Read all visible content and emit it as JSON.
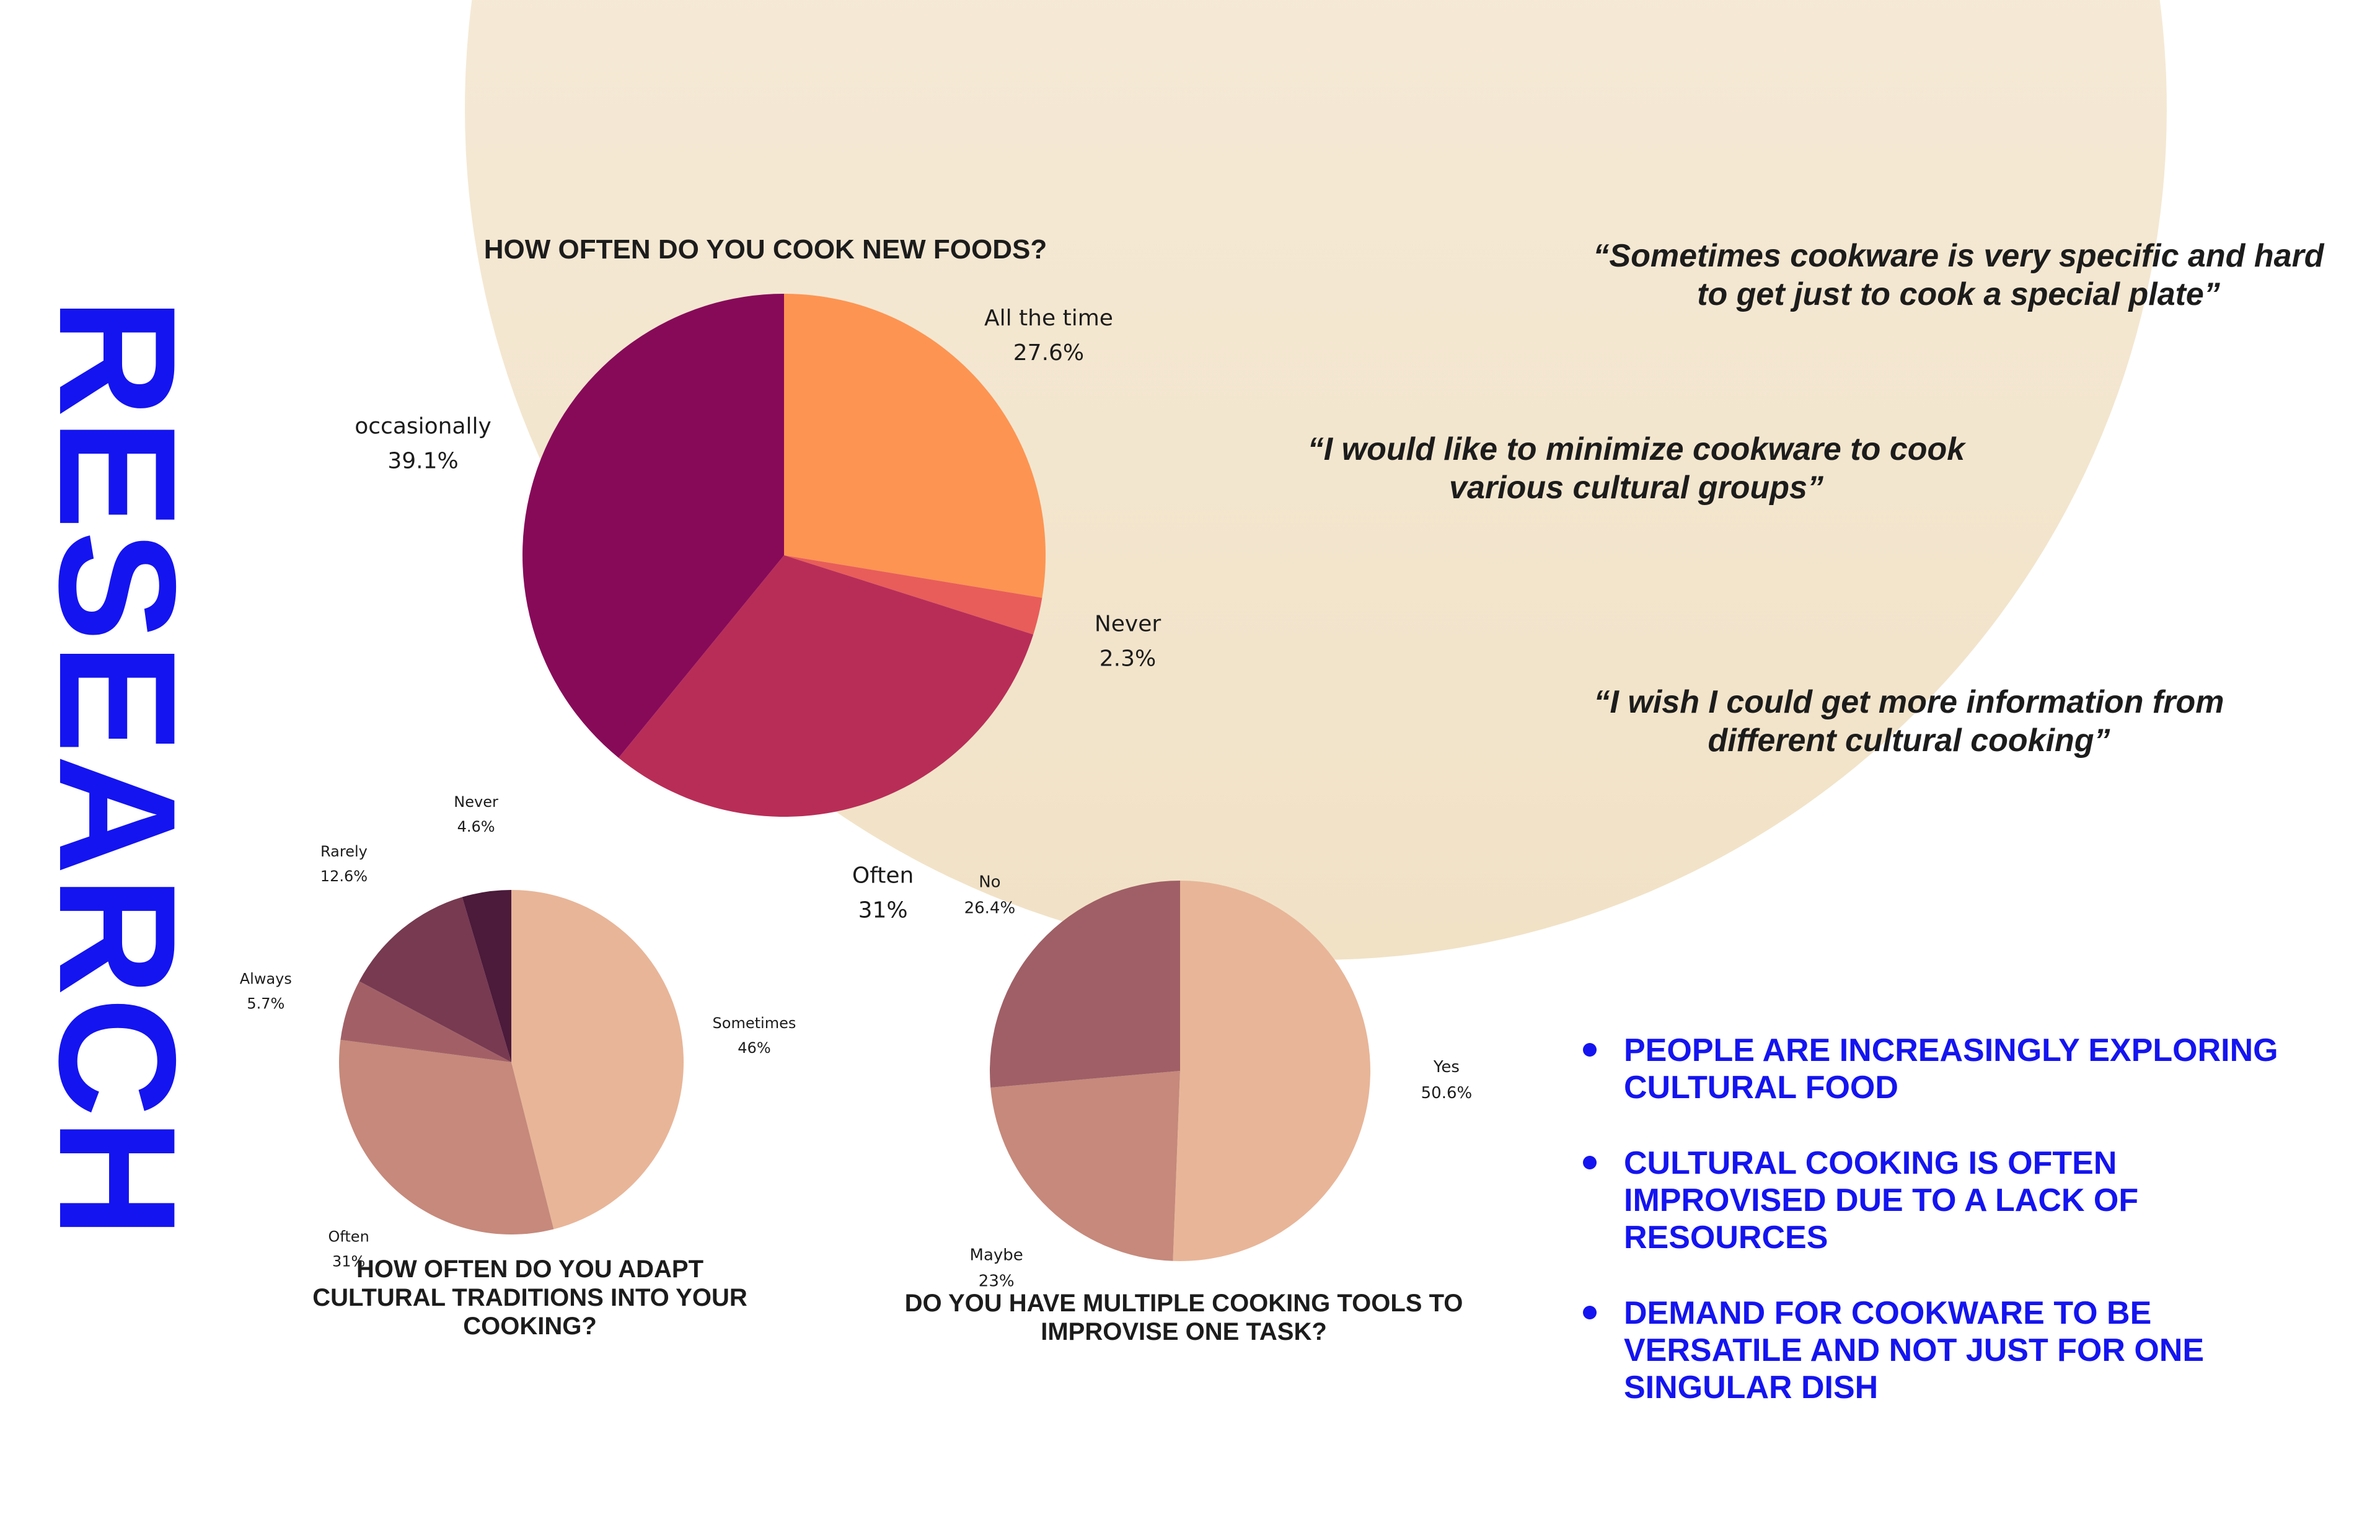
{
  "side_title": "RESEARCH",
  "quotes": [
    "“Sometimes cookware is very specific and hard to get just to cook a special plate”",
    "“I would like to minimize cookware to cook various cultural groups”",
    "“I wish I could get more information from different cultural cooking”"
  ],
  "findings": [
    "People are increasingly exploring cultural food",
    "Cultural cooking is often improvised due to a lack of resources",
    "Demand for cookware to be versatile and not just for one singular dish"
  ],
  "chart_data": [
    {
      "type": "pie",
      "title": "How often do you cook new foods?",
      "slices": [
        {
          "label": "All the time",
          "value": 27.6,
          "display": "27.6%",
          "color": "#fd9452"
        },
        {
          "label": "Never",
          "value": 2.3,
          "display": "2.3%",
          "color": "#e85d5a"
        },
        {
          "label": "Often",
          "value": 31,
          "display": "31%",
          "color": "#b82d58"
        },
        {
          "label": "occasionally",
          "value": 39.1,
          "display": "39.1%",
          "color": "#870a59"
        }
      ]
    },
    {
      "type": "pie",
      "title": "How often do you adapt cultural traditions into your cooking?",
      "slices": [
        {
          "label": "Sometimes",
          "value": 46,
          "display": "46%",
          "color": "#e8b598"
        },
        {
          "label": "Often",
          "value": 31,
          "display": "31%",
          "color": "#c6897b"
        },
        {
          "label": "Always",
          "value": 5.7,
          "display": "5.7%",
          "color": "#a26066"
        },
        {
          "label": "Rarely",
          "value": 12.6,
          "display": "12.6%",
          "color": "#773a51"
        },
        {
          "label": "Never",
          "value": 4.6,
          "display": "4.6%",
          "color": "#4c1a3a"
        }
      ]
    },
    {
      "type": "pie",
      "title": "Do you have multiple cooking tools to improvise one task?",
      "slices": [
        {
          "label": "Yes",
          "value": 50.6,
          "display": "50.6%",
          "color": "#e8b598"
        },
        {
          "label": "Maybe",
          "value": 23,
          "display": "23%",
          "color": "#c6897b"
        },
        {
          "label": "No",
          "value": 26.4,
          "display": "26.4%",
          "color": "#a05f66"
        }
      ]
    }
  ]
}
